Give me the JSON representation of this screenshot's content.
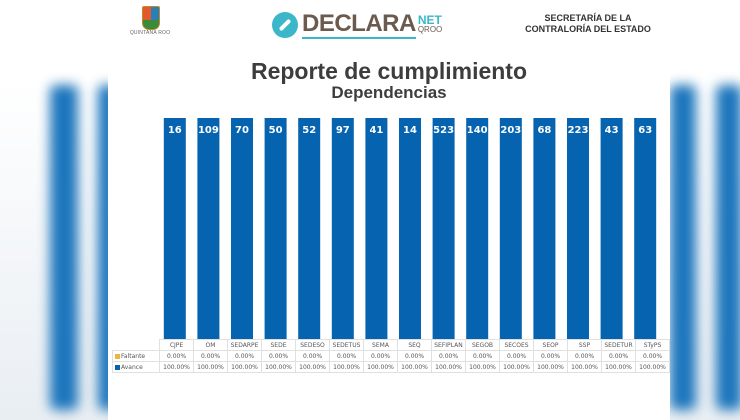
{
  "header": {
    "state_logo_text": "QUINTANA ROO",
    "brand": {
      "word": "DECLARA",
      "net": "NET",
      "sub": "QROO"
    },
    "agency_line1": "SECRETARÍA DE LA",
    "agency_line2": "CONTRALORÍA DEL ESTADO"
  },
  "colors": {
    "avance": "#0563b0",
    "faltante": "#f0b440",
    "brand_teal": "#3bb7c9",
    "brand_brown": "#6b5a4e"
  },
  "chart_data": {
    "type": "bar",
    "title": "Reporte de cumplimiento",
    "subtitle": "Dependencias",
    "categories": [
      "CJPE",
      "OM",
      "SEDARPE",
      "SEDE",
      "SEDESO",
      "SEDETUS",
      "SEMA",
      "SEQ",
      "SEFIPLAN",
      "SEGOB",
      "SECOES",
      "SEOP",
      "SSP",
      "SEDETUR",
      "STyPS"
    ],
    "data_labels": [
      "16",
      "109",
      "70",
      "50",
      "52",
      "97",
      "41",
      "14",
      "523",
      "140",
      "203",
      "68",
      "223",
      "43",
      "63"
    ],
    "series": [
      {
        "name": "Faltante",
        "values": [
          "0.00%",
          "0.00%",
          "0.00%",
          "0.00%",
          "0.00%",
          "0.00%",
          "0.00%",
          "0.00%",
          "0.00%",
          "0.00%",
          "0.00%",
          "0.00%",
          "0.00%",
          "0.00%",
          "0.00%"
        ],
        "percent": [
          0,
          0,
          0,
          0,
          0,
          0,
          0,
          0,
          0,
          0,
          0,
          0,
          0,
          0,
          0
        ]
      },
      {
        "name": "Avance",
        "values": [
          "100.00%",
          "100.00%",
          "100.00%",
          "100.00%",
          "100.00%",
          "100.00%",
          "100.00%",
          "100.00%",
          "100.00%",
          "100.00%",
          "100.00%",
          "100.00%",
          "100.00%",
          "100.00%",
          "100.00%"
        ],
        "percent": [
          100,
          100,
          100,
          100,
          100,
          100,
          100,
          100,
          100,
          100,
          100,
          100,
          100,
          100,
          100
        ]
      }
    ],
    "stacked": true,
    "ylim": [
      0,
      100
    ],
    "legend": "data-table"
  }
}
